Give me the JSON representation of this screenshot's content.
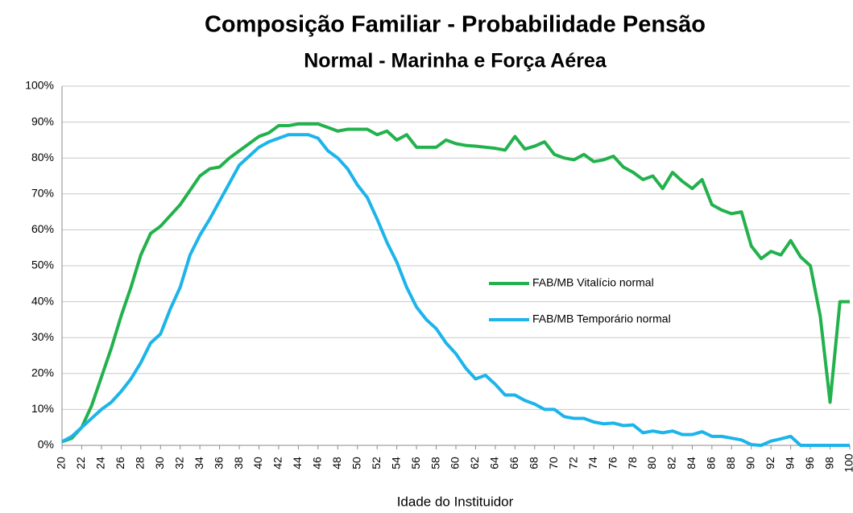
{
  "chart_data": {
    "type": "line",
    "title_lines": [
      "Composição Familiar - Probabilidade Pensão",
      "Normal - Marinha e Força Aérea"
    ],
    "x_label": "Idade do Instituidor",
    "x": [
      20,
      21,
      22,
      23,
      24,
      25,
      26,
      27,
      28,
      29,
      30,
      31,
      32,
      33,
      34,
      35,
      36,
      37,
      38,
      39,
      40,
      41,
      42,
      43,
      44,
      45,
      46,
      47,
      48,
      49,
      50,
      51,
      52,
      53,
      54,
      55,
      56,
      57,
      58,
      59,
      60,
      61,
      62,
      63,
      64,
      65,
      66,
      67,
      68,
      69,
      70,
      71,
      72,
      73,
      74,
      75,
      76,
      77,
      78,
      79,
      80,
      81,
      82,
      83,
      84,
      85,
      86,
      87,
      88,
      89,
      90,
      91,
      92,
      93,
      94,
      95,
      96,
      97,
      98,
      99,
      100
    ],
    "xlim": [
      20,
      100
    ],
    "xticks": [
      20,
      22,
      24,
      26,
      28,
      30,
      32,
      34,
      36,
      38,
      40,
      42,
      44,
      46,
      48,
      50,
      52,
      54,
      56,
      58,
      60,
      62,
      64,
      66,
      68,
      70,
      72,
      74,
      76,
      78,
      80,
      82,
      84,
      86,
      88,
      90,
      92,
      94,
      96,
      98,
      100
    ],
    "ylim": [
      0,
      100
    ],
    "yticks": [
      {
        "value": 0,
        "label": "0%"
      },
      {
        "value": 10,
        "label": "10%"
      },
      {
        "value": 20,
        "label": "20%"
      },
      {
        "value": 30,
        "label": "30%"
      },
      {
        "value": 40,
        "label": "40%"
      },
      {
        "value": 50,
        "label": "50%"
      },
      {
        "value": 60,
        "label": "60%"
      },
      {
        "value": 70,
        "label": "70%"
      },
      {
        "value": 80,
        "label": "80%"
      },
      {
        "value": 90,
        "label": "90%"
      },
      {
        "value": 100,
        "label": "100%"
      }
    ],
    "grid": true,
    "legend": "right",
    "series": [
      {
        "name": "FAB/MB Vitalício normal",
        "color": "#22b14c",
        "values": [
          1,
          2,
          5,
          11,
          19,
          27,
          36,
          44,
          53,
          59,
          61,
          64,
          67,
          71,
          75,
          77,
          77.5,
          80,
          82,
          84,
          86,
          87,
          89,
          89,
          89.5,
          89.5,
          89.5,
          88.5,
          87.5,
          88,
          88,
          88,
          86.5,
          87.5,
          85,
          86.5,
          83,
          83,
          83,
          85,
          84,
          83.5,
          83.3,
          83,
          82.7,
          82.2,
          86,
          82.5,
          83.3,
          84.5,
          81,
          80,
          79.5,
          81,
          79,
          79.5,
          80.5,
          77.5,
          76,
          74,
          75,
          71.5,
          76,
          73.5,
          71.5,
          74,
          67,
          65.5,
          64.5,
          65,
          55.5,
          52,
          54,
          53,
          57,
          52.5,
          50,
          36,
          12,
          40,
          40
        ]
      },
      {
        "name": "FAB/MB Temporário normal",
        "color": "#1cb4ea",
        "values": [
          1,
          2.5,
          5,
          7.5,
          10,
          12,
          15,
          18.5,
          23,
          28.5,
          31,
          38,
          44,
          53,
          58.5,
          63,
          68,
          73,
          78,
          80.5,
          83,
          84.5,
          85.5,
          86.5,
          86.5,
          86.5,
          85.5,
          82,
          80,
          77,
          72.5,
          69,
          63,
          56.5,
          51,
          44,
          38.5,
          35,
          32.5,
          28.5,
          25.5,
          21.5,
          18.5,
          19.5,
          17,
          14,
          14,
          12.5,
          11.5,
          10,
          10,
          8,
          7.5,
          7.5,
          6.5,
          6,
          6.2,
          5.5,
          5.7,
          3.5,
          4,
          3.5,
          4,
          3,
          3,
          3.8,
          2.5,
          2.5,
          2,
          1.5,
          0.2,
          0,
          1.2,
          1.8,
          2.5,
          0,
          0,
          0,
          0,
          0,
          0
        ]
      }
    ]
  }
}
